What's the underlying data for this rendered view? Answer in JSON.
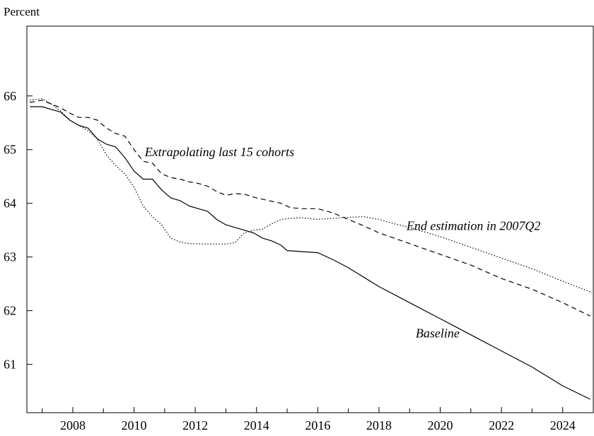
{
  "chart_data": {
    "type": "line",
    "ylabel": "Percent",
    "xlabel": "",
    "title": "",
    "xlim": [
      2006.5,
      2025.0
    ],
    "ylim": [
      60.1,
      67.3
    ],
    "x_ticks": [
      2008,
      2010,
      2012,
      2014,
      2016,
      2018,
      2020,
      2022,
      2024
    ],
    "y_ticks": [
      61,
      62,
      63,
      64,
      65,
      66
    ],
    "grid": false,
    "series": [
      {
        "name": "Baseline",
        "style": "solid",
        "points": [
          [
            2006.6,
            65.8
          ],
          [
            2007.0,
            65.8
          ],
          [
            2007.3,
            65.75
          ],
          [
            2007.6,
            65.7
          ],
          [
            2007.9,
            65.55
          ],
          [
            2008.2,
            65.45
          ],
          [
            2008.5,
            65.4
          ],
          [
            2008.8,
            65.2
          ],
          [
            2009.1,
            65.1
          ],
          [
            2009.4,
            65.05
          ],
          [
            2009.7,
            64.85
          ],
          [
            2010.0,
            64.6
          ],
          [
            2010.3,
            64.45
          ],
          [
            2010.6,
            64.45
          ],
          [
            2010.9,
            64.25
          ],
          [
            2011.2,
            64.1
          ],
          [
            2011.5,
            64.05
          ],
          [
            2011.8,
            63.95
          ],
          [
            2012.1,
            63.9
          ],
          [
            2012.4,
            63.85
          ],
          [
            2012.7,
            63.7
          ],
          [
            2013.0,
            63.6
          ],
          [
            2013.3,
            63.55
          ],
          [
            2013.6,
            63.5
          ],
          [
            2013.9,
            63.45
          ],
          [
            2014.2,
            63.35
          ],
          [
            2014.5,
            63.3
          ],
          [
            2014.8,
            63.22
          ],
          [
            2015.0,
            63.12
          ],
          [
            2015.5,
            63.1
          ],
          [
            2016.0,
            63.08
          ],
          [
            2016.5,
            62.95
          ],
          [
            2017.0,
            62.8
          ],
          [
            2018.0,
            62.45
          ],
          [
            2019.0,
            62.15
          ],
          [
            2020.0,
            61.85
          ],
          [
            2021.0,
            61.55
          ],
          [
            2022.0,
            61.25
          ],
          [
            2023.0,
            60.95
          ],
          [
            2024.0,
            60.6
          ],
          [
            2024.9,
            60.35
          ]
        ]
      },
      {
        "name": "Extrapolating last 15 cohorts",
        "style": "dashed",
        "points": [
          [
            2006.6,
            65.88
          ],
          [
            2007.0,
            65.92
          ],
          [
            2007.3,
            65.85
          ],
          [
            2007.6,
            65.78
          ],
          [
            2007.9,
            65.68
          ],
          [
            2008.2,
            65.6
          ],
          [
            2008.5,
            65.6
          ],
          [
            2008.8,
            65.55
          ],
          [
            2009.1,
            65.4
          ],
          [
            2009.4,
            65.3
          ],
          [
            2009.7,
            65.25
          ],
          [
            2010.0,
            65.0
          ],
          [
            2010.3,
            64.78
          ],
          [
            2010.6,
            64.75
          ],
          [
            2010.9,
            64.55
          ],
          [
            2011.2,
            64.48
          ],
          [
            2011.5,
            64.45
          ],
          [
            2011.8,
            64.4
          ],
          [
            2012.1,
            64.37
          ],
          [
            2012.4,
            64.32
          ],
          [
            2012.7,
            64.22
          ],
          [
            2013.0,
            64.15
          ],
          [
            2013.3,
            64.18
          ],
          [
            2013.6,
            64.17
          ],
          [
            2014.0,
            64.1
          ],
          [
            2014.4,
            64.05
          ],
          [
            2014.8,
            64.0
          ],
          [
            2015.1,
            63.92
          ],
          [
            2015.5,
            63.9
          ],
          [
            2016.0,
            63.9
          ],
          [
            2016.5,
            63.82
          ],
          [
            2017.0,
            63.7
          ],
          [
            2017.5,
            63.58
          ],
          [
            2018.0,
            63.45
          ],
          [
            2018.5,
            63.35
          ],
          [
            2019.0,
            63.25
          ],
          [
            2020.0,
            63.05
          ],
          [
            2021.0,
            62.85
          ],
          [
            2022.0,
            62.6
          ],
          [
            2023.0,
            62.4
          ],
          [
            2024.0,
            62.15
          ],
          [
            2024.9,
            61.9
          ]
        ]
      },
      {
        "name": "End estimation in 2007Q2",
        "style": "dotted",
        "points": [
          [
            2006.6,
            65.92
          ],
          [
            2007.0,
            65.95
          ],
          [
            2007.3,
            65.85
          ],
          [
            2007.6,
            65.72
          ],
          [
            2007.9,
            65.55
          ],
          [
            2008.2,
            65.45
          ],
          [
            2008.5,
            65.35
          ],
          [
            2008.8,
            65.2
          ],
          [
            2009.1,
            64.9
          ],
          [
            2009.4,
            64.7
          ],
          [
            2009.7,
            64.55
          ],
          [
            2010.0,
            64.3
          ],
          [
            2010.3,
            63.95
          ],
          [
            2010.6,
            63.75
          ],
          [
            2010.9,
            63.6
          ],
          [
            2011.2,
            63.35
          ],
          [
            2011.5,
            63.28
          ],
          [
            2011.8,
            63.25
          ],
          [
            2012.4,
            63.24
          ],
          [
            2013.0,
            63.24
          ],
          [
            2013.3,
            63.27
          ],
          [
            2013.6,
            63.45
          ],
          [
            2013.9,
            63.5
          ],
          [
            2014.2,
            63.52
          ],
          [
            2014.5,
            63.62
          ],
          [
            2014.8,
            63.7
          ],
          [
            2015.1,
            63.72
          ],
          [
            2015.5,
            63.73
          ],
          [
            2016.0,
            63.7
          ],
          [
            2016.5,
            63.72
          ],
          [
            2017.0,
            63.74
          ],
          [
            2017.5,
            63.75
          ],
          [
            2018.0,
            63.7
          ],
          [
            2018.5,
            63.62
          ],
          [
            2019.0,
            63.55
          ],
          [
            2020.0,
            63.38
          ],
          [
            2021.0,
            63.18
          ],
          [
            2022.0,
            62.98
          ],
          [
            2023.0,
            62.78
          ],
          [
            2024.0,
            62.55
          ],
          [
            2024.9,
            62.35
          ]
        ]
      }
    ],
    "annotations": [
      {
        "text": "Extrapolating last 15 cohorts",
        "x": 2010.35,
        "y": 64.88
      },
      {
        "text": "End estimation in 2007Q2",
        "x": 2018.9,
        "y": 63.5
      },
      {
        "text": "Baseline",
        "x": 2019.2,
        "y": 61.5
      }
    ]
  }
}
